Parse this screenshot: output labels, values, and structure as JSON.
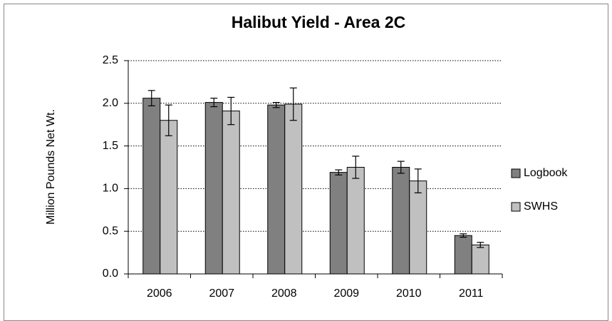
{
  "chart_data": {
    "type": "bar",
    "title": "Halibut Yield - Area 2C",
    "ylabel": "Million Pounds Net Wt.",
    "categories": [
      "2006",
      "2007",
      "2008",
      "2009",
      "2010",
      "2011"
    ],
    "series": [
      {
        "name": "Logbook",
        "color": "#808080",
        "values": [
          2.06,
          2.01,
          1.98,
          1.19,
          1.25,
          0.45
        ],
        "errors": [
          0.09,
          0.05,
          0.03,
          0.03,
          0.07,
          0.02
        ]
      },
      {
        "name": "SWHS",
        "color": "#c0c0c0",
        "values": [
          1.8,
          1.91,
          1.99,
          1.25,
          1.09,
          0.34
        ],
        "errors": [
          0.18,
          0.16,
          0.19,
          0.13,
          0.14,
          0.03
        ]
      }
    ],
    "ylim": [
      0,
      2.5
    ],
    "yticks": [
      {
        "value": 0,
        "label": "0.0"
      },
      0.5,
      {
        "value": 1,
        "label": "1.0"
      },
      1.5,
      {
        "value": 2,
        "label": "2.0"
      },
      2.5
    ],
    "grid": true,
    "legend": "right"
  }
}
